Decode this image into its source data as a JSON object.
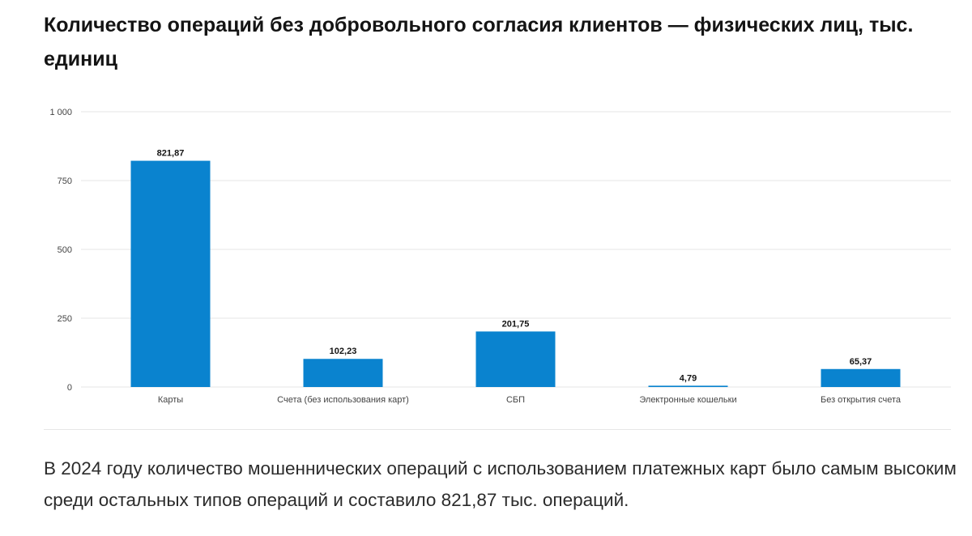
{
  "title": "Количество операций без добровольного согласия клиентов — физических лиц, тыс. единиц",
  "caption": "В 2024 году количество мошеннических операций с использованием платежных карт было самым высоким среди остальных типов операций и составило 821,87 тыс. операций.",
  "colors": {
    "bar": "#0a83cf",
    "grid": "#e6e6e6",
    "text": "#141414",
    "axis_text": "#444444"
  },
  "chart_data": {
    "type": "bar",
    "title": "Количество операций без добровольного согласия клиентов — физических лиц, тыс. единиц",
    "categories": [
      "Карты",
      "Счета (без использования карт)",
      "СБП",
      "Электронные кошельки",
      "Без открытия счета"
    ],
    "values": [
      821.87,
      102.23,
      201.75,
      4.79,
      65.37
    ],
    "value_labels": [
      "821,87",
      "102,23",
      "201,75",
      "4,79",
      "65,37"
    ],
    "yticks": [
      0,
      250,
      500,
      750,
      1000
    ],
    "ytick_labels": [
      "0",
      "250",
      "500",
      "750",
      "1 000"
    ],
    "ylim": [
      0,
      1000
    ],
    "xlabel": "",
    "ylabel": "",
    "grid": true
  }
}
